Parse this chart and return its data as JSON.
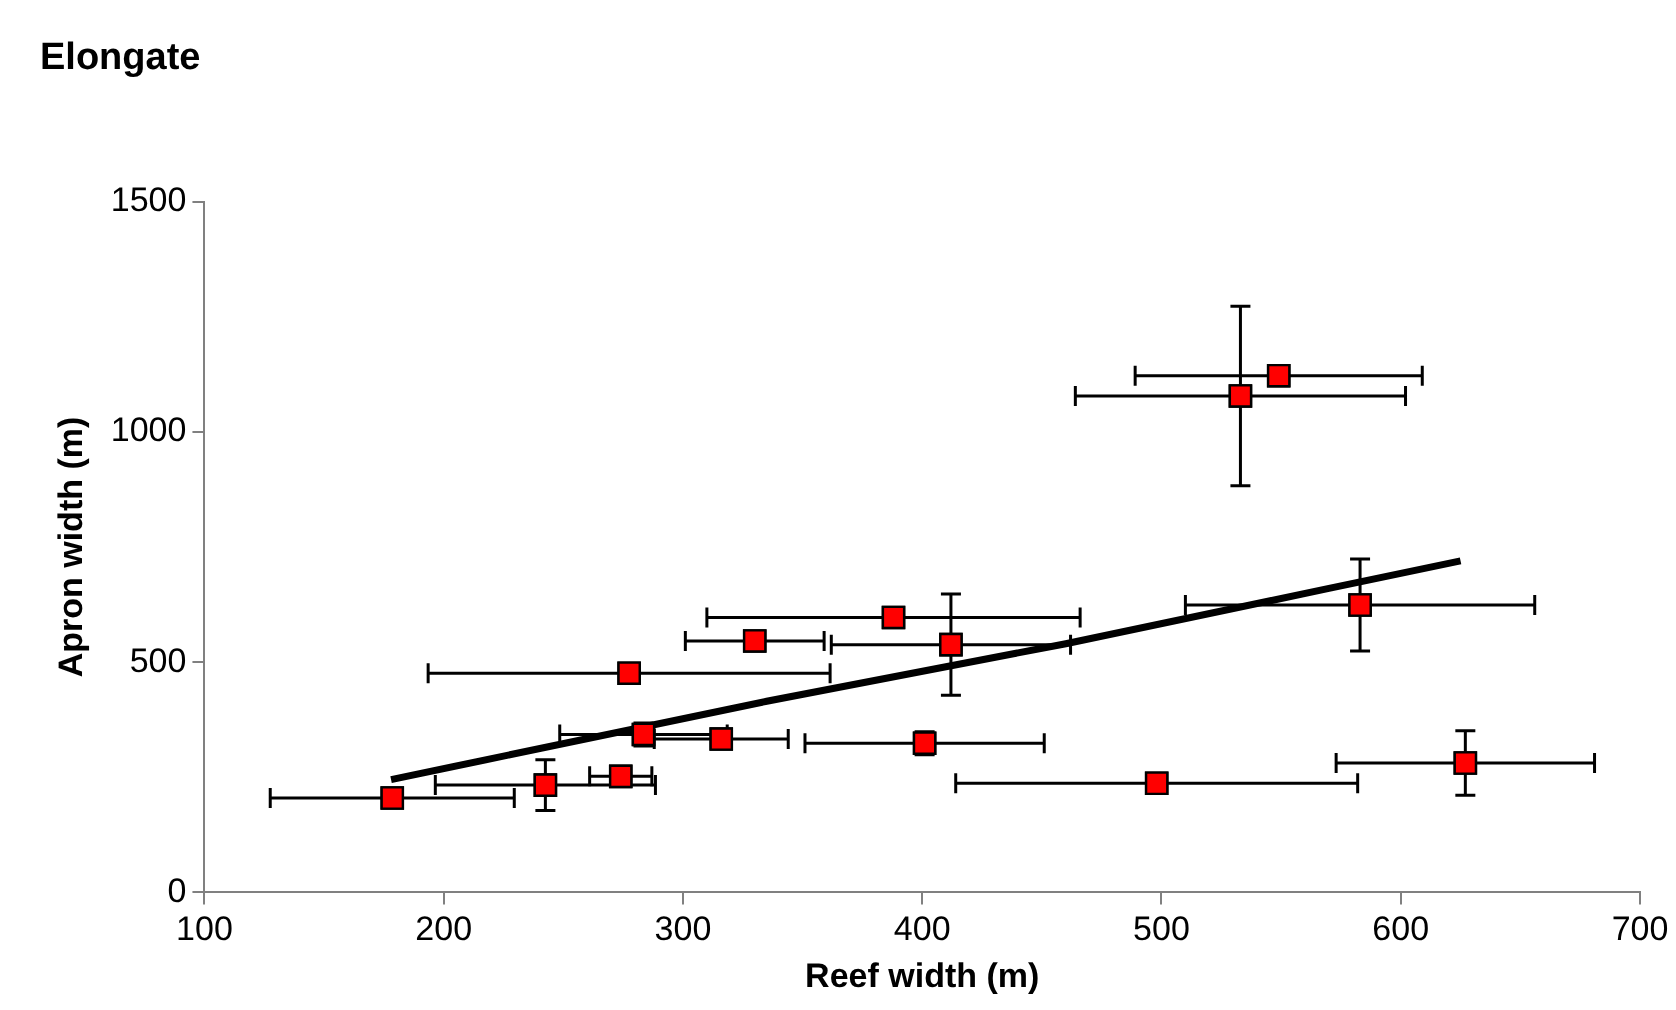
{
  "chart_data": {
    "type": "scatter",
    "title": "Elongate",
    "xlabel": "Reef width (m)",
    "ylabel": "Apron width (m)",
    "xlim": [
      100,
      700
    ],
    "xticks": [
      100,
      200,
      300,
      400,
      500,
      600,
      700
    ],
    "ylim": [
      0,
      1500
    ],
    "yticks": [
      0,
      500,
      1000,
      1500
    ],
    "grid": false,
    "legend": false,
    "marker": "square",
    "series": [
      {
        "color": "#ff0000",
        "x": [
          178.5,
          242.5,
          274,
          283.5,
          316,
          401,
          277.5,
          330,
          388,
          412,
          498,
          627,
          583,
          533,
          549
        ],
        "values": [
          205,
          233,
          252,
          343,
          333,
          324,
          476,
          546,
          597,
          538,
          237,
          281,
          624,
          1078,
          1122
        ],
        "xerrors": [
          51,
          46,
          13,
          35,
          28,
          50,
          84,
          29,
          78,
          50,
          84,
          54,
          73,
          69,
          60
        ],
        "errors": [
          null,
          55,
          null,
          25,
          null,
          25,
          null,
          null,
          null,
          110,
          null,
          70,
          100,
          195,
          null
        ]
      },
      {
        "type": "line",
        "color": "#000000",
        "x": [
          178,
          335,
          460,
          570,
          625
        ],
        "values": [
          245,
          415,
          540,
          660,
          720
        ],
        "line_style": "solid",
        "marker": "none"
      }
    ]
  }
}
